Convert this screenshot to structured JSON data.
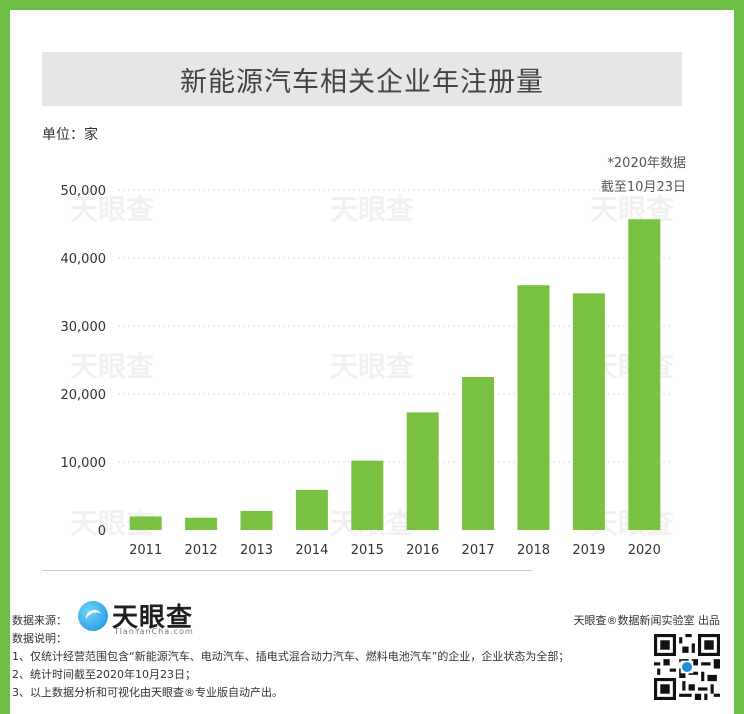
{
  "title": "新能源汽车相关企业年注册量",
  "unit_label": "单位：家",
  "note_line1": "*2020年数据",
  "note_line2": "截至10月23日",
  "watermark_text": "天眼查",
  "chart_data": {
    "type": "bar",
    "title": "新能源汽车相关企业年注册量",
    "categories": [
      "2011",
      "2012",
      "2013",
      "2014",
      "2015",
      "2016",
      "2017",
      "2018",
      "2019",
      "2020"
    ],
    "values": [
      2000,
      1800,
      2800,
      5900,
      10200,
      17300,
      22500,
      36000,
      34800,
      45700
    ],
    "ylim": [
      0,
      50000
    ],
    "yticks": [
      0,
      10000,
      20000,
      30000,
      40000,
      50000
    ],
    "ytick_labels": [
      "0",
      "10,000",
      "20,000",
      "30,000",
      "40,000",
      "50,000"
    ],
    "bar_color": "#7ac142",
    "grid": true
  },
  "footer": {
    "source_label": "数据来源：",
    "logo_name": "天眼查",
    "logo_subtitle": "TianYanCha.com",
    "producer": "天眼查®数据新闻实验室 出品",
    "desc_title": "数据说明：",
    "notes": [
      "1、仅统计经营范围包含“新能源汽车、电动汽车、插电式混合动力汽车、燃料电池汽车”的企业，企业状态为全部；",
      "2、统计时间截至2020年10月23日；",
      "3、以上数据分析和可视化由天眼查®专业版自动产出。"
    ]
  },
  "colors": {
    "border": "#6cbe45",
    "bar": "#7ac142",
    "title_bg": "#e6e6e6"
  }
}
